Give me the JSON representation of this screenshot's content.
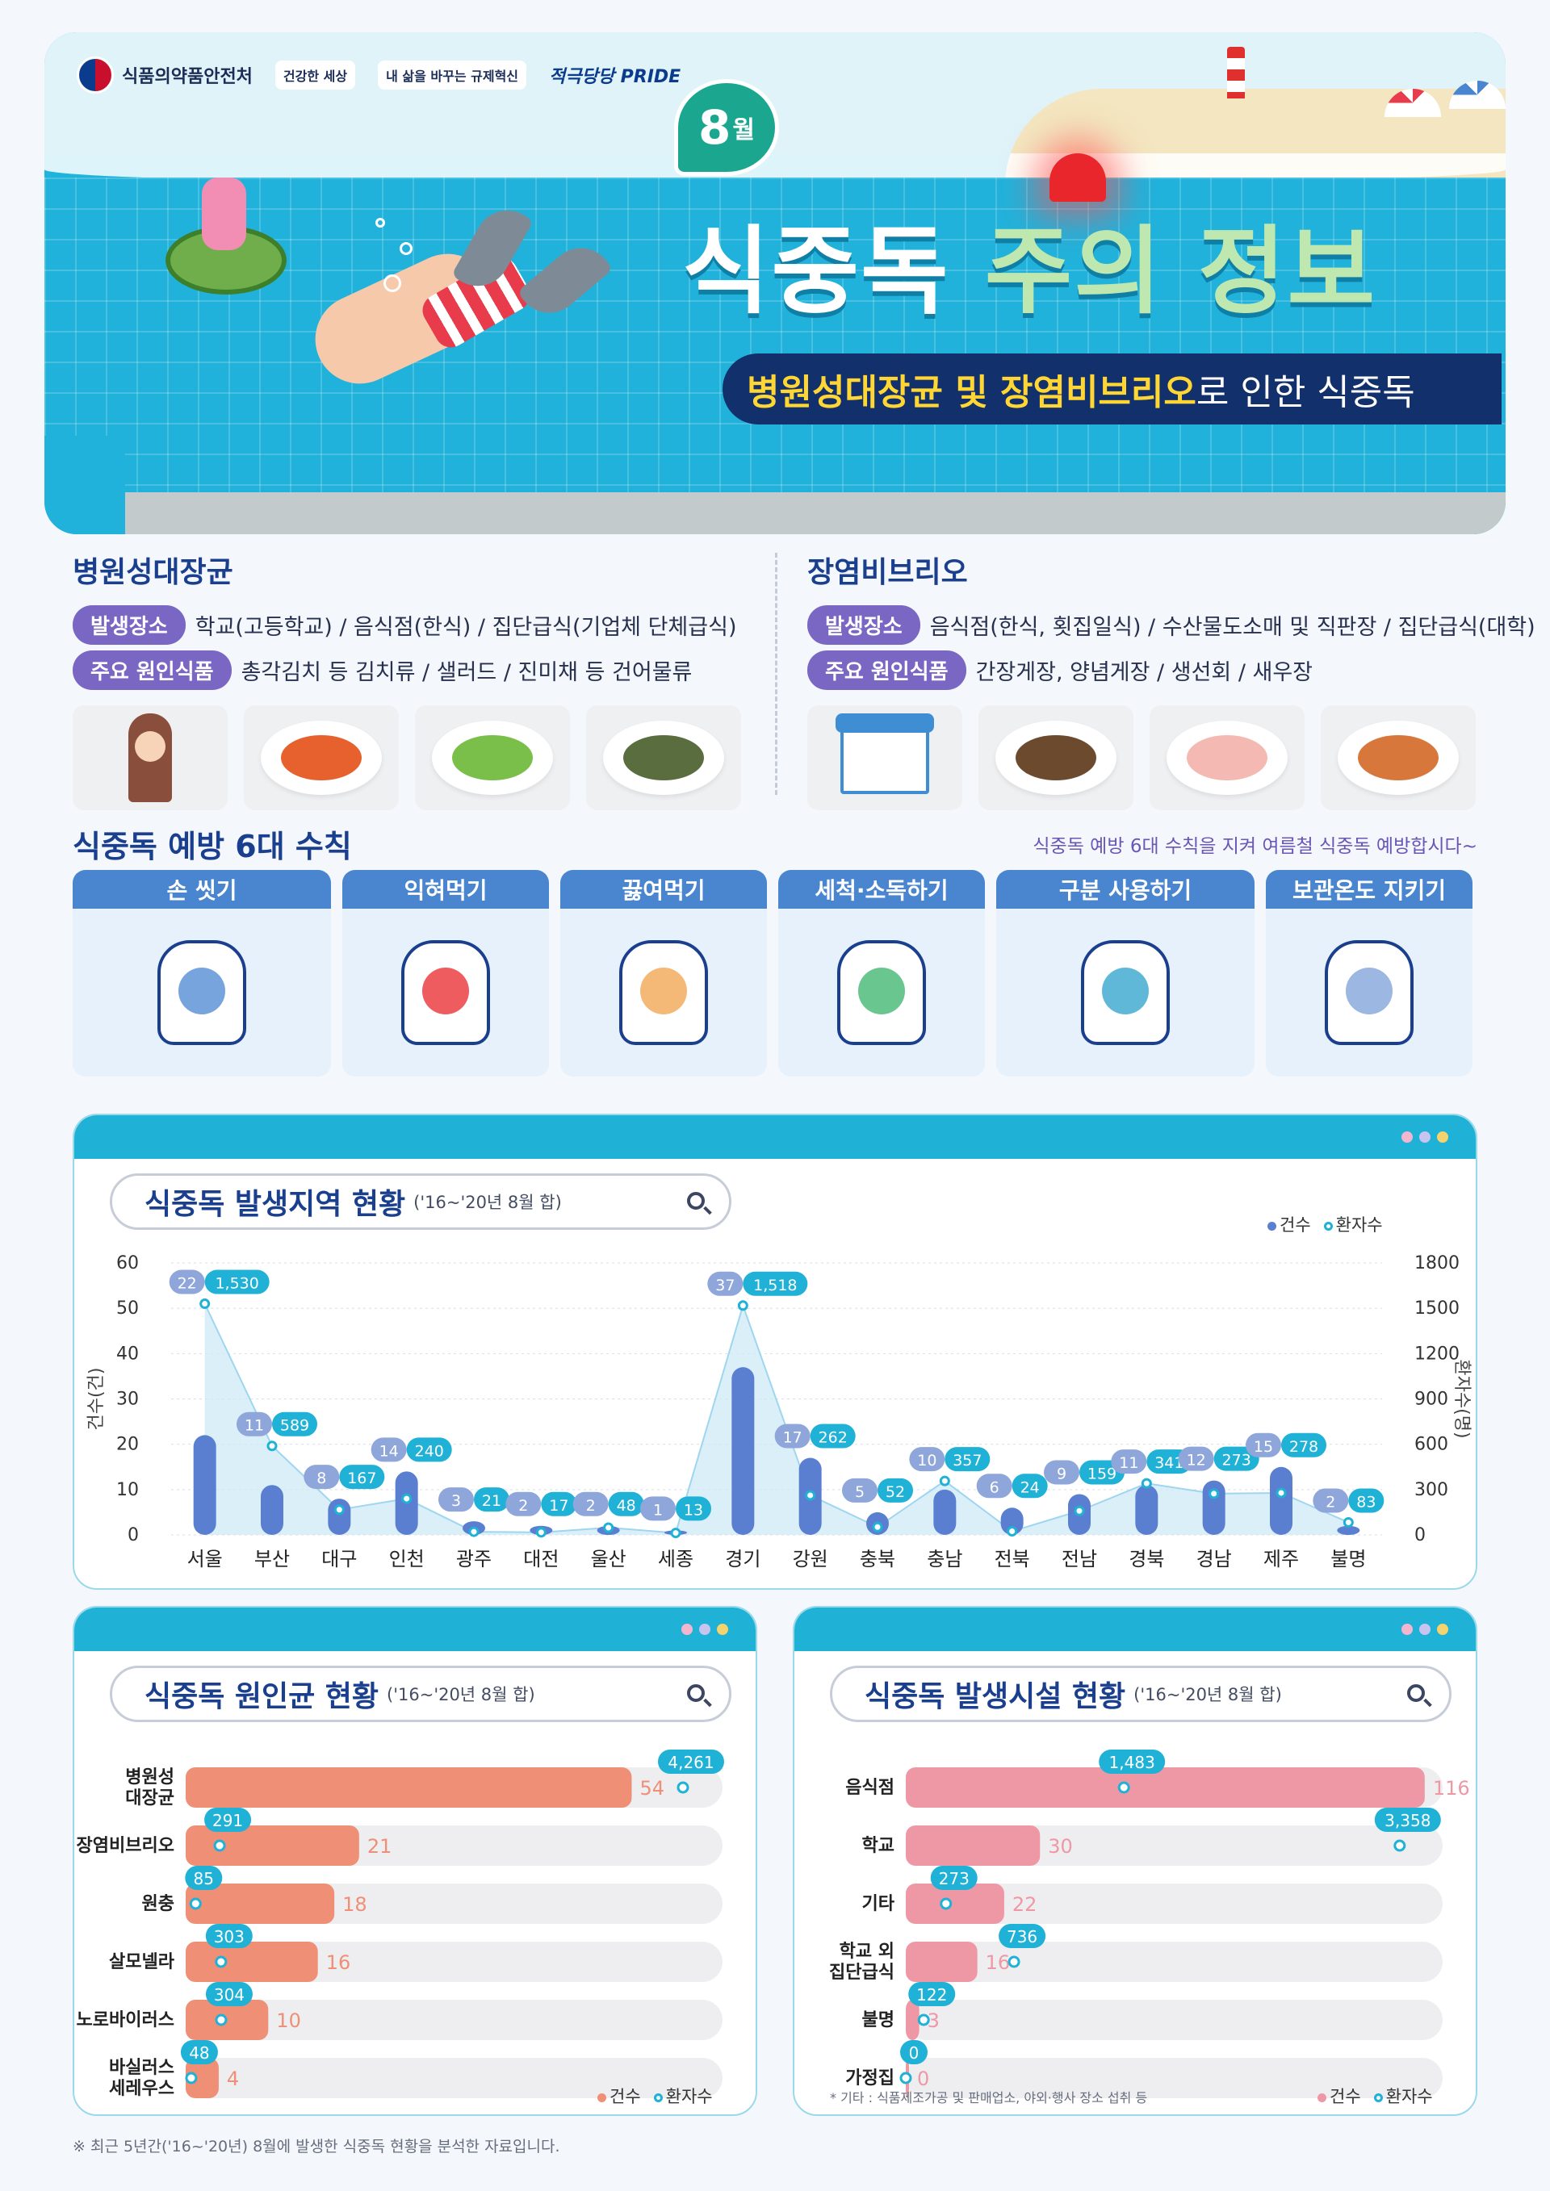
{
  "header": {
    "agency": "식품의약품안전처",
    "badge_1": "건강한 세상",
    "badge_2": "내 삶을 바꾸는 규제혁신",
    "badge_3": "적극당당 PRIDE",
    "month_num": "8",
    "month_unit": "월",
    "title_part1": "식중독",
    "title_part2": "주의 정보",
    "subtitle_hl": "병원성대장균 및 장염비브리오",
    "subtitle_rest": "로 인한 식중독"
  },
  "causes": [
    {
      "title": "병원성대장균",
      "place_label": "발생장소",
      "place_value": "학교(고등학교) / 음식점(한식) / 집단급식(기업체 단체급식)",
      "food_label": "주요 원인식품",
      "food_value": "총각김치 등 김치류 / 샐러드 / 진미채 등 건어물류"
    },
    {
      "title": "장염비브리오",
      "place_label": "발생장소",
      "place_value": "음식점(한식, 횟집일식) / 수산물도소매 및 직판장 / 집단급식(대학)",
      "food_label": "주요 원인식품",
      "food_value": "간장게장, 양념게장 / 생선회 / 새우장"
    }
  ],
  "rules": {
    "title": "식중독 예방 6대 수칙",
    "slogan": "식중독 예방 6대 수칙을 지켜 여름철 식중독 예방합시다~",
    "items": [
      "손 씻기",
      "익혀먹기",
      "끓여먹기",
      "세척·소독하기",
      "구분 사용하기",
      "보관온도 지키기"
    ]
  },
  "colors": {
    "primary": "#1fb1d6",
    "navy": "#1b3f8f",
    "cases_blue": "#5b7fd0",
    "cause_bar": "#ee8f76",
    "facility_bar": "#ee98a6",
    "track": "#eeeef1",
    "pill": "#7a67c4"
  },
  "legend": {
    "cases": "건수",
    "patients": "환자수"
  },
  "chart_data": [
    {
      "type": "bar",
      "title": "식중독 발생지역 현황",
      "subtitle": "('16~'20년 8월 합)",
      "ylabel": "건수(건)",
      "y2label": "환자수(명)",
      "ylim": [
        0,
        60
      ],
      "y2lim": [
        0,
        1800
      ],
      "yticks": [
        0,
        10,
        20,
        30,
        40,
        50,
        60
      ],
      "y2ticks": [
        0,
        300,
        600,
        900,
        1200,
        1500,
        1800
      ],
      "categories": [
        "서울",
        "부산",
        "대구",
        "인천",
        "광주",
        "대전",
        "울산",
        "세종",
        "경기",
        "강원",
        "충북",
        "충남",
        "전북",
        "전남",
        "경북",
        "경남",
        "제주",
        "불명"
      ],
      "series": [
        {
          "name": "건수",
          "values": [
            22,
            11,
            8,
            14,
            3,
            2,
            2,
            1,
            37,
            17,
            5,
            10,
            6,
            9,
            11,
            12,
            15,
            2
          ]
        },
        {
          "name": "환자수",
          "values": [
            1530,
            589,
            167,
            240,
            21,
            17,
            48,
            13,
            1518,
            262,
            52,
            357,
            24,
            159,
            341,
            273,
            278,
            83
          ]
        }
      ],
      "value_labels": [
        "1,530",
        "589",
        "167",
        "240",
        "21",
        "17",
        "48",
        "13",
        "1,518",
        "262",
        "52",
        "357",
        "24",
        "159",
        "341",
        "273",
        "278",
        "83"
      ],
      "legend_position": "top-right",
      "grid": true
    },
    {
      "type": "bar",
      "orientation": "horizontal",
      "title": "식중독 원인균 현황",
      "subtitle": "('16~'20년 8월 합)",
      "categories": [
        [
          "병원성",
          "대장균"
        ],
        [
          "장염비브리오"
        ],
        [
          "원충"
        ],
        [
          "살모넬라"
        ],
        [
          "노로바이러스"
        ],
        [
          "바실러스",
          "세레우스"
        ]
      ],
      "series": [
        {
          "name": "건수",
          "values": [
            54,
            21,
            18,
            16,
            10,
            4
          ]
        },
        {
          "name": "환자수",
          "values": [
            4261,
            291,
            85,
            303,
            304,
            48
          ]
        }
      ],
      "value_labels": [
        "4,261",
        "291",
        "85",
        "303",
        "304",
        "48"
      ],
      "xlim": [
        0,
        65
      ],
      "x2lim": [
        0,
        4600
      ],
      "legend_position": "bottom-right"
    },
    {
      "type": "bar",
      "orientation": "horizontal",
      "title": "식중독 발생시설 현황",
      "subtitle": "('16~'20년 8월 합)",
      "categories": [
        [
          "음식점"
        ],
        [
          "학교"
        ],
        [
          "기타"
        ],
        [
          "학교 외",
          "집단급식"
        ],
        [
          "불명"
        ],
        [
          "가정집"
        ]
      ],
      "series": [
        {
          "name": "건수",
          "values": [
            116,
            30,
            22,
            16,
            3,
            0
          ]
        },
        {
          "name": "환자수",
          "values": [
            1483,
            3358,
            273,
            736,
            122,
            0
          ]
        }
      ],
      "value_labels": [
        "1,483",
        "3,358",
        "273",
        "736",
        "122",
        "0"
      ],
      "xlim": [
        0,
        120
      ],
      "x2lim": [
        0,
        3650
      ],
      "legend_position": "bottom-right"
    }
  ],
  "notes": {
    "facility": "* 기타 : 식품제조가공 및 판매업소, 야외·행사 장소 섭취 등",
    "footer": "※ 최근 5년간('16~'20년) 8월에 발생한 식중독 현황을 분석한 자료입니다."
  }
}
